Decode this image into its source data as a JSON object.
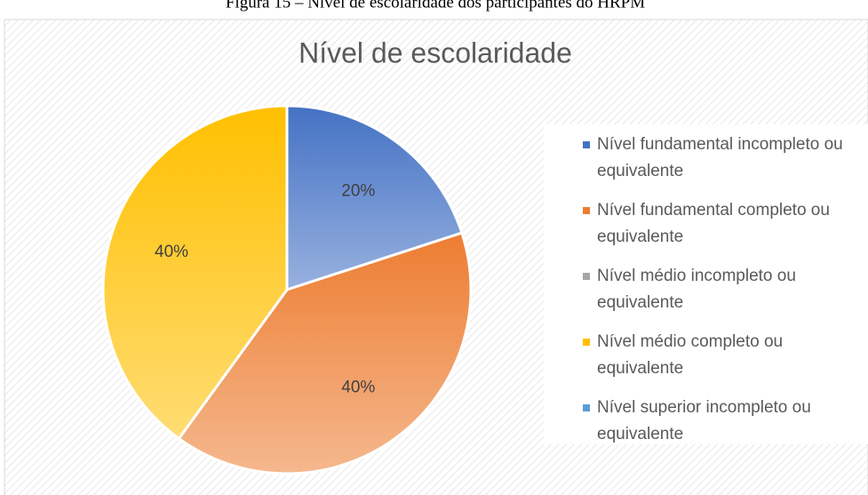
{
  "caption": "Figura 15 – Nível de escolaridade dos participantes do HRPM",
  "chart_data": {
    "type": "pie",
    "title": "Nível de escolaridade",
    "categories": [
      "Nível fundamental incompleto ou equivalente",
      "Nível fundamental completo ou equivalente",
      "Nível médio incompleto ou equivalente",
      "Nível médio completo ou equivalente",
      "Nível superior incompleto ou equivalente"
    ],
    "values": [
      20,
      40,
      0,
      40,
      0
    ],
    "value_labels": [
      "20%",
      "40%",
      null,
      "40%",
      null
    ],
    "colors": [
      "#4472c4",
      "#ed7d31",
      "#a5a5a5",
      "#ffc000",
      "#5b9bd5"
    ],
    "legend": "right"
  }
}
